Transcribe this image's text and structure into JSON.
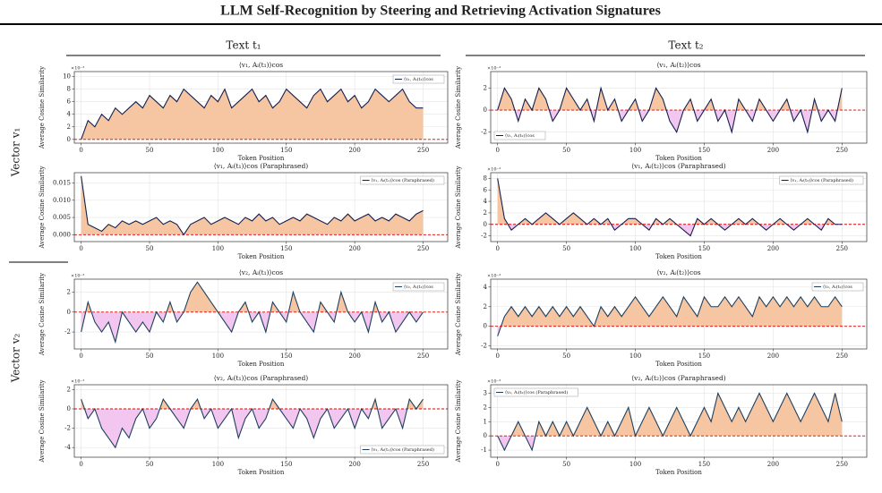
{
  "title": "LLM Self-Recognition by Steering and Retrieving Activation Signatures",
  "column_labels": [
    "Text t₁",
    "Text t₂"
  ],
  "row_labels": [
    "Vector v₁",
    "Vector v₂"
  ],
  "chart_data": [
    {
      "type": "line",
      "title": "⟨v₁, Aᵢ(t₁)⟩cos",
      "xlabel": "Token Position",
      "ylabel": "Average Cosine Similarity",
      "offset_text": "×10⁻³",
      "x": [
        0,
        5,
        10,
        15,
        20,
        25,
        30,
        35,
        40,
        45,
        50,
        55,
        60,
        65,
        70,
        75,
        80,
        85,
        90,
        95,
        100,
        105,
        110,
        115,
        120,
        125,
        130,
        135,
        140,
        145,
        150,
        155,
        160,
        165,
        170,
        175,
        180,
        185,
        190,
        195,
        200,
        205,
        210,
        215,
        220,
        225,
        230,
        235,
        240,
        245,
        250
      ],
      "series": [
        {
          "name": "⟨v₁, Aᵢ(t₁)⟩cos",
          "color": "#14204f",
          "values": [
            0,
            3,
            2,
            4,
            3,
            5,
            4,
            5,
            6,
            5,
            7,
            6,
            5,
            7,
            6,
            8,
            7,
            6,
            5,
            7,
            6,
            8,
            5,
            6,
            7,
            8,
            6,
            7,
            5,
            6,
            8,
            7,
            6,
            5,
            7,
            8,
            6,
            7,
            8,
            6,
            7,
            5,
            6,
            8,
            7,
            6,
            7,
            8,
            6,
            5,
            5
          ]
        }
      ],
      "xlim": [
        -5,
        268
      ],
      "ylim": [
        -0.6,
        10.8
      ],
      "xticks": [
        0,
        50,
        100,
        150,
        200,
        250
      ],
      "yticks": [
        0,
        2,
        4,
        6,
        8,
        10
      ],
      "grid": true,
      "legend": "upper right"
    },
    {
      "type": "line",
      "title": "⟨v₁, Aᵢ(t₂)⟩cos",
      "xlabel": "Token Position",
      "ylabel": "Average Cosine Similarity",
      "offset_text": "×10⁻³",
      "x": [
        0,
        5,
        10,
        15,
        20,
        25,
        30,
        35,
        40,
        45,
        50,
        55,
        60,
        65,
        70,
        75,
        80,
        85,
        90,
        95,
        100,
        105,
        110,
        115,
        120,
        125,
        130,
        135,
        140,
        145,
        150,
        155,
        160,
        165,
        170,
        175,
        180,
        185,
        190,
        195,
        200,
        205,
        210,
        215,
        220,
        225,
        230,
        235,
        240,
        245,
        250
      ],
      "series": [
        {
          "name": "⟨v₁, Aᵢ(t₂)⟩cos",
          "color": "#14204f",
          "values": [
            0,
            2,
            1,
            -1,
            1,
            0,
            2,
            1,
            -1,
            0,
            2,
            1,
            0,
            1,
            -1,
            2,
            0,
            1,
            -1,
            0,
            1,
            -1,
            0,
            2,
            1,
            -1,
            -2,
            0,
            1,
            -1,
            0,
            1,
            -1,
            0,
            -2,
            1,
            0,
            -1,
            1,
            0,
            -1,
            0,
            1,
            -1,
            0,
            -2,
            1,
            -1,
            0,
            -1,
            2
          ]
        }
      ],
      "xlim": [
        -5,
        268
      ],
      "ylim": [
        -3,
        3.5
      ],
      "xticks": [
        0,
        50,
        100,
        150,
        200,
        250
      ],
      "yticks": [
        -2,
        0,
        2
      ],
      "grid": true,
      "legend": "lower left"
    },
    {
      "type": "line",
      "title": "⟨v₁, Aᵢ(t₁)⟩cos (Paraphrased)",
      "xlabel": "Token Position",
      "ylabel": "Average Cosine Similarity",
      "x": [
        0,
        5,
        10,
        15,
        20,
        25,
        30,
        35,
        40,
        45,
        50,
        55,
        60,
        65,
        70,
        75,
        80,
        85,
        90,
        95,
        100,
        105,
        110,
        115,
        120,
        125,
        130,
        135,
        140,
        145,
        150,
        155,
        160,
        165,
        170,
        175,
        180,
        185,
        190,
        195,
        200,
        205,
        210,
        215,
        220,
        225,
        230,
        235,
        240,
        245,
        250
      ],
      "series": [
        {
          "name": "⟨v₁, Aᵢ(t₁)⟩cos (Paraphrased)",
          "color": "#14204f",
          "values": [
            0.017,
            0.003,
            0.002,
            0.001,
            0.003,
            0.002,
            0.004,
            0.003,
            0.004,
            0.003,
            0.004,
            0.005,
            0.003,
            0.004,
            0.003,
            0.0,
            0.003,
            0.004,
            0.005,
            0.003,
            0.004,
            0.005,
            0.004,
            0.003,
            0.005,
            0.004,
            0.006,
            0.004,
            0.005,
            0.003,
            0.004,
            0.005,
            0.004,
            0.006,
            0.005,
            0.004,
            0.003,
            0.005,
            0.004,
            0.006,
            0.004,
            0.005,
            0.006,
            0.004,
            0.005,
            0.004,
            0.006,
            0.005,
            0.004,
            0.006,
            0.007
          ]
        }
      ],
      "xlim": [
        -5,
        268
      ],
      "ylim": [
        -0.002,
        0.018
      ],
      "xticks": [
        0,
        50,
        100,
        150,
        200,
        250
      ],
      "yticks": [
        {
          "value": 0,
          "label": "0.000"
        },
        {
          "value": 0.005,
          "label": "0.005"
        },
        {
          "value": 0.01,
          "label": "0.010"
        },
        {
          "value": 0.015,
          "label": "0.015"
        }
      ],
      "grid": true,
      "legend": "upper right"
    },
    {
      "type": "line",
      "title": "⟨v₁, Aᵢ(t₂)⟩cos (Paraphrased)",
      "xlabel": "Token Position",
      "ylabel": "Average Cosine Similarity",
      "offset_text": "×10⁻³",
      "x": [
        0,
        5,
        10,
        15,
        20,
        25,
        30,
        35,
        40,
        45,
        50,
        55,
        60,
        65,
        70,
        75,
        80,
        85,
        90,
        95,
        100,
        105,
        110,
        115,
        120,
        125,
        130,
        135,
        140,
        145,
        150,
        155,
        160,
        165,
        170,
        175,
        180,
        185,
        190,
        195,
        200,
        205,
        210,
        215,
        220,
        225,
        230,
        235,
        240,
        245,
        250
      ],
      "series": [
        {
          "name": "⟨v₁, Aᵢ(t₂)⟩cos (Paraphrased)",
          "color": "#14204f",
          "values": [
            8,
            1,
            -1,
            0,
            1,
            0,
            1,
            2,
            1,
            0,
            1,
            2,
            1,
            0,
            1,
            0,
            1,
            -1,
            0,
            1,
            1,
            0,
            -1,
            1,
            0,
            1,
            0,
            -1,
            -2,
            1,
            0,
            1,
            0,
            -1,
            0,
            1,
            0,
            1,
            0,
            -1,
            0,
            1,
            0,
            -1,
            0,
            1,
            0,
            -1,
            1,
            0,
            0
          ]
        }
      ],
      "xlim": [
        -5,
        268
      ],
      "ylim": [
        -3,
        9
      ],
      "xticks": [
        0,
        50,
        100,
        150,
        200,
        250
      ],
      "yticks": [
        -2,
        0,
        2,
        4,
        6,
        8
      ],
      "grid": true,
      "legend": "upper right"
    },
    {
      "type": "line",
      "title": "⟨v₂, Aᵢ(t₁)⟩cos",
      "xlabel": "Token Position",
      "ylabel": "Average Cosine Similarity",
      "offset_text": "×10⁻³",
      "x": [
        0,
        5,
        10,
        15,
        20,
        25,
        30,
        35,
        40,
        45,
        50,
        55,
        60,
        65,
        70,
        75,
        80,
        85,
        90,
        95,
        100,
        105,
        110,
        115,
        120,
        125,
        130,
        135,
        140,
        145,
        150,
        155,
        160,
        165,
        170,
        175,
        180,
        185,
        190,
        195,
        200,
        205,
        210,
        215,
        220,
        225,
        230,
        235,
        240,
        245,
        250
      ],
      "series": [
        {
          "name": "⟨v₂, Aᵢ(t₁)⟩cos",
          "color": "#1e4060",
          "values": [
            -2,
            1,
            -1,
            -2,
            -1,
            -3,
            0,
            -1,
            -2,
            -1,
            -2,
            0,
            -1,
            1,
            -1,
            0,
            2,
            3,
            2,
            1,
            0,
            -1,
            -2,
            0,
            1,
            -1,
            0,
            -2,
            1,
            0,
            -1,
            2,
            0,
            -1,
            -2,
            1,
            0,
            -1,
            2,
            0,
            -1,
            0,
            -2,
            1,
            -1,
            0,
            -2,
            -1,
            0,
            -1,
            0
          ]
        }
      ],
      "xlim": [
        -5,
        268
      ],
      "ylim": [
        -3.7,
        3.3
      ],
      "xticks": [
        0,
        50,
        100,
        150,
        200,
        250
      ],
      "yticks": [
        -2,
        0,
        2
      ],
      "grid": true,
      "legend": "upper right"
    },
    {
      "type": "line",
      "title": "⟨v₂, Aᵢ(t₂)⟩cos",
      "xlabel": "Token Position",
      "ylabel": "Average Cosine Similarity",
      "offset_text": "×10⁻³",
      "x": [
        0,
        5,
        10,
        15,
        20,
        25,
        30,
        35,
        40,
        45,
        50,
        55,
        60,
        65,
        70,
        75,
        80,
        85,
        90,
        95,
        100,
        105,
        110,
        115,
        120,
        125,
        130,
        135,
        140,
        145,
        150,
        155,
        160,
        165,
        170,
        175,
        180,
        185,
        190,
        195,
        200,
        205,
        210,
        215,
        220,
        225,
        230,
        235,
        240,
        245,
        250
      ],
      "series": [
        {
          "name": "⟨v₂, Aᵢ(t₂)⟩cos",
          "color": "#1e4060",
          "values": [
            -1,
            1,
            2,
            1,
            2,
            1,
            2,
            1,
            2,
            1,
            2,
            1,
            2,
            1,
            0,
            2,
            1,
            2,
            1,
            2,
            3,
            2,
            1,
            2,
            3,
            2,
            1,
            3,
            2,
            1,
            3,
            2,
            2,
            3,
            2,
            3,
            2,
            1,
            3,
            2,
            3,
            2,
            3,
            2,
            3,
            2,
            3,
            2,
            2,
            3,
            2
          ]
        }
      ],
      "xlim": [
        -5,
        268
      ],
      "ylim": [
        -2.3,
        4.8
      ],
      "xticks": [
        0,
        50,
        100,
        150,
        200,
        250
      ],
      "yticks": [
        -2,
        0,
        2,
        4
      ],
      "grid": true,
      "legend": "upper right"
    },
    {
      "type": "line",
      "title": "⟨v₂, Aᵢ(t₁)⟩cos (Paraphrased)",
      "xlabel": "Token Position",
      "ylabel": "Average Cosine Similarity",
      "offset_text": "×10⁻³",
      "x": [
        0,
        5,
        10,
        15,
        20,
        25,
        30,
        35,
        40,
        45,
        50,
        55,
        60,
        65,
        70,
        75,
        80,
        85,
        90,
        95,
        100,
        105,
        110,
        115,
        120,
        125,
        130,
        135,
        140,
        145,
        150,
        155,
        160,
        165,
        170,
        175,
        180,
        185,
        190,
        195,
        200,
        205,
        210,
        215,
        220,
        225,
        230,
        235,
        240,
        245,
        250
      ],
      "series": [
        {
          "name": "⟨v₂, Aᵢ(t₁)⟩cos (Paraphrased)",
          "color": "#1e4060",
          "values": [
            1,
            -1,
            0,
            -2,
            -3,
            -4,
            -2,
            -3,
            -1,
            0,
            -2,
            -1,
            1,
            0,
            -1,
            -2,
            0,
            1,
            -1,
            0,
            -2,
            -1,
            0,
            -3,
            -1,
            0,
            -2,
            -1,
            1,
            0,
            -1,
            -2,
            0,
            -1,
            -3,
            -1,
            0,
            -2,
            -1,
            0,
            -2,
            0,
            -1,
            1,
            -2,
            -1,
            0,
            -2,
            1,
            0,
            1
          ]
        }
      ],
      "xlim": [
        -5,
        268
      ],
      "ylim": [
        -5,
        2.5
      ],
      "xticks": [
        0,
        50,
        100,
        150,
        200,
        250
      ],
      "yticks": [
        -4,
        -2,
        0,
        2
      ],
      "grid": true,
      "legend": "lower right"
    },
    {
      "type": "line",
      "title": "⟨v₂, Aᵢ(t₂)⟩cos (Paraphrased)",
      "xlabel": "Token Position",
      "ylabel": "Average Cosine Similarity",
      "offset_text": "×10⁻³",
      "x": [
        0,
        5,
        10,
        15,
        20,
        25,
        30,
        35,
        40,
        45,
        50,
        55,
        60,
        65,
        70,
        75,
        80,
        85,
        90,
        95,
        100,
        105,
        110,
        115,
        120,
        125,
        130,
        135,
        140,
        145,
        150,
        155,
        160,
        165,
        170,
        175,
        180,
        185,
        190,
        195,
        200,
        205,
        210,
        215,
        220,
        225,
        230,
        235,
        240,
        245,
        250
      ],
      "series": [
        {
          "name": "⟨v₂, Aᵢ(t₂)⟩cos (Paraphrased)",
          "color": "#1e4060",
          "values": [
            0,
            -1,
            0,
            1,
            0,
            -1,
            1,
            0,
            1,
            0,
            1,
            0,
            1,
            2,
            1,
            0,
            1,
            0,
            1,
            2,
            0,
            1,
            2,
            1,
            0,
            1,
            2,
            1,
            0,
            1,
            2,
            1,
            3,
            2,
            1,
            2,
            1,
            2,
            3,
            2,
            1,
            2,
            3,
            2,
            1,
            2,
            3,
            2,
            1,
            3,
            1
          ]
        }
      ],
      "xlim": [
        -5,
        268
      ],
      "ylim": [
        -1.5,
        3.6
      ],
      "xticks": [
        0,
        50,
        100,
        150,
        200,
        250
      ],
      "yticks": [
        -1,
        0,
        1,
        2,
        3
      ],
      "grid": true,
      "legend": "upper left"
    }
  ],
  "zero_line_color": "#e00000",
  "fill_colors": {
    "positive": "#f6c6a3",
    "negative": "#f3c6f0"
  }
}
